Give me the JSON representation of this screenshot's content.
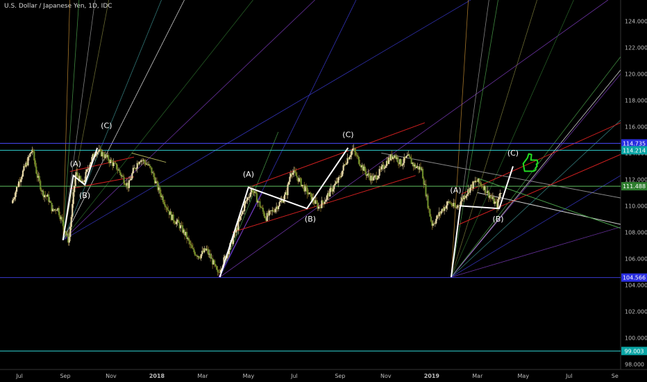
{
  "chart_data": {
    "type": "candlestick",
    "title": "U.S. Dollar / Japanese Yen, 1D, IDC",
    "y_axis": {
      "ticks": [
        98,
        100,
        102,
        104,
        106,
        108,
        110,
        112,
        114,
        116,
        118,
        120,
        122,
        124
      ],
      "tick_labels": [
        "98.000",
        "100.000",
        "102.000",
        "104.000",
        "106.000",
        "108.000",
        "110.000",
        "112.000",
        "114.000",
        "116.000",
        "118.000",
        "120.000",
        "122.000",
        "124.000"
      ],
      "range": [
        97.6,
        125.6
      ]
    },
    "x_axis": {
      "labels": [
        {
          "text": "Jul",
          "m": 0.3
        },
        {
          "text": "Sep",
          "m": 2.3
        },
        {
          "text": "Nov",
          "m": 4.3
        },
        {
          "text": "2018",
          "m": 6.3
        },
        {
          "text": "Mar",
          "m": 8.3
        },
        {
          "text": "May",
          "m": 10.3
        },
        {
          "text": "Jul",
          "m": 12.3
        },
        {
          "text": "Sep",
          "m": 14.3
        },
        {
          "text": "Nov",
          "m": 16.3
        },
        {
          "text": "2019",
          "m": 18.3
        },
        {
          "text": "Mar",
          "m": 20.3
        },
        {
          "text": "May",
          "m": 22.3
        },
        {
          "text": "Jul",
          "m": 24.3
        },
        {
          "text": "Se",
          "m": 26.3
        }
      ],
      "range": [
        -0.55,
        26.55
      ]
    },
    "price_badges": [
      {
        "value": 114.735,
        "label": "114.735",
        "color": "#2a2ee0",
        "line": "#4a4aff"
      },
      {
        "value": 114.214,
        "label": "114.214",
        "color": "#0aa5a5",
        "line": "#30d0d0"
      },
      {
        "value": 111.488,
        "label": "111.488",
        "color": "#2e7d2e",
        "line": "#5fbf5f"
      },
      {
        "value": 104.566,
        "label": "104.566",
        "color": "#2a2ee0",
        "line": "#3a3ad0"
      },
      {
        "value": 99.003,
        "label": "99.003",
        "color": "#0aa5a5",
        "line": "#30d0d0"
      }
    ],
    "price_path": [
      [
        0,
        110.2
      ],
      [
        0.35,
        112.0
      ],
      [
        0.7,
        113.4
      ],
      [
        0.9,
        114.3
      ],
      [
        1.1,
        112.4
      ],
      [
        1.35,
        111.0
      ],
      [
        1.6,
        110.6
      ],
      [
        1.8,
        109.6
      ],
      [
        2.0,
        109.9
      ],
      [
        2.2,
        108.8
      ],
      [
        2.5,
        107.3
      ],
      [
        2.8,
        112.5
      ],
      [
        3.1,
        111.6
      ],
      [
        3.4,
        113.2
      ],
      [
        3.7,
        114.2
      ],
      [
        4.0,
        113.9
      ],
      [
        4.3,
        113.4
      ],
      [
        4.6,
        112.9
      ],
      [
        4.9,
        112.0
      ],
      [
        5.1,
        111.5
      ],
      [
        5.3,
        112.6
      ],
      [
        5.6,
        113.6
      ],
      [
        5.9,
        113.2
      ],
      [
        6.1,
        112.7
      ],
      [
        6.4,
        111.3
      ],
      [
        6.7,
        110.2
      ],
      [
        7.0,
        109.1
      ],
      [
        7.3,
        108.6
      ],
      [
        7.6,
        107.8
      ],
      [
        7.9,
        106.6
      ],
      [
        8.2,
        106.2
      ],
      [
        8.5,
        106.7
      ],
      [
        8.8,
        105.7
      ],
      [
        9.0,
        104.8
      ],
      [
        9.3,
        106.0
      ],
      [
        9.6,
        107.2
      ],
      [
        9.9,
        108.6
      ],
      [
        10.2,
        110.2
      ],
      [
        10.5,
        111.3
      ],
      [
        10.8,
        110.2
      ],
      [
        11.1,
        109.1
      ],
      [
        11.4,
        109.6
      ],
      [
        11.7,
        110.2
      ],
      [
        12.0,
        110.9
      ],
      [
        12.2,
        112.7
      ],
      [
        12.5,
        112.1
      ],
      [
        12.8,
        111.3
      ],
      [
        13.1,
        110.6
      ],
      [
        13.4,
        109.9
      ],
      [
        13.7,
        110.5
      ],
      [
        14.0,
        111.3
      ],
      [
        14.3,
        112.0
      ],
      [
        14.6,
        113.4
      ],
      [
        14.9,
        114.3
      ],
      [
        15.2,
        113.3
      ],
      [
        15.5,
        112.4
      ],
      [
        15.8,
        112.0
      ],
      [
        16.1,
        112.6
      ],
      [
        16.4,
        113.4
      ],
      [
        16.7,
        113.9
      ],
      [
        17.0,
        113.2
      ],
      [
        17.3,
        113.7
      ],
      [
        17.6,
        113.0
      ],
      [
        17.9,
        112.8
      ],
      [
        18.05,
        111.4
      ],
      [
        18.2,
        109.9
      ],
      [
        18.35,
        108.6
      ],
      [
        18.5,
        108.9
      ],
      [
        18.8,
        109.7
      ],
      [
        19.1,
        110.3
      ],
      [
        19.4,
        109.8
      ],
      [
        19.7,
        110.6
      ],
      [
        20.0,
        111.3
      ],
      [
        20.3,
        111.9
      ],
      [
        20.6,
        111.5
      ],
      [
        20.9,
        110.7
      ],
      [
        21.2,
        110.0
      ],
      [
        21.35,
        111.1
      ]
    ],
    "wave_labels": [
      {
        "text": "(A)",
        "m": 2.75,
        "p": 113.0
      },
      {
        "text": "(B)",
        "m": 3.15,
        "p": 110.6
      },
      {
        "text": "(C)",
        "m": 4.1,
        "p": 115.9
      },
      {
        "text": "(A)",
        "m": 10.3,
        "p": 112.2
      },
      {
        "text": "(B)",
        "m": 13.0,
        "p": 108.8
      },
      {
        "text": "(C)",
        "m": 14.65,
        "p": 115.2
      },
      {
        "text": "(A)",
        "m": 19.35,
        "p": 111.0
      },
      {
        "text": "(B)",
        "m": 21.2,
        "p": 108.8
      },
      {
        "text": "(C)",
        "m": 21.85,
        "p": 113.8
      }
    ],
    "wave_lines": [
      [
        [
          2.2,
          107.4
        ],
        [
          2.65,
          112.3
        ],
        [
          3.15,
          111.6
        ],
        [
          3.7,
          114.4
        ]
      ],
      [
        [
          9.05,
          104.6
        ],
        [
          10.3,
          111.4
        ],
        [
          12.85,
          109.8
        ],
        [
          14.65,
          114.4
        ]
      ],
      [
        [
          19.15,
          104.6
        ],
        [
          19.55,
          110.0
        ],
        [
          21.25,
          109.8
        ],
        [
          21.85,
          113.0
        ]
      ]
    ],
    "channel_lines": [
      {
        "color": "#d22020",
        "w": 1,
        "pts": [
          [
            2.5,
            111.3
          ],
          [
            5.3,
            112.2
          ]
        ]
      },
      {
        "color": "#d22020",
        "w": 1,
        "pts": [
          [
            2.5,
            112.6
          ],
          [
            5.3,
            113.7
          ]
        ]
      },
      {
        "color": "#b0b05a",
        "w": 1,
        "pts": [
          [
            5.2,
            114.0
          ],
          [
            6.7,
            113.3
          ]
        ]
      },
      {
        "color": "#7a3aba",
        "w": 1,
        "pts": [
          [
            9.0,
            104.6
          ],
          [
            10.9,
            111.0
          ]
        ]
      },
      {
        "color": "#d22020",
        "w": 1,
        "pts": [
          [
            9.6,
            108.0
          ],
          [
            17.6,
            112.3
          ]
        ]
      },
      {
        "color": "#d22020",
        "w": 1,
        "pts": [
          [
            10.3,
            111.4
          ],
          [
            18.0,
            116.3
          ]
        ]
      },
      {
        "color": "#8a8a8a",
        "w": 1,
        "pts": [
          [
            16.1,
            114.0
          ],
          [
            26.55,
            110.6
          ]
        ]
      },
      {
        "color": "#d22020",
        "w": 1,
        "pts": [
          [
            19.5,
            108.6
          ],
          [
            26.55,
            113.9
          ]
        ]
      },
      {
        "color": "#d22020",
        "w": 1,
        "pts": [
          [
            19.6,
            110.9
          ],
          [
            26.55,
            116.3
          ]
        ]
      },
      {
        "color": "#d0d0d0",
        "w": 1,
        "pts": [
          [
            20.3,
            111.0
          ],
          [
            26.55,
            108.6
          ]
        ]
      },
      {
        "color": "#4aa04a",
        "w": 1,
        "pts": [
          [
            20.3,
            112.1
          ],
          [
            26.55,
            108.3
          ]
        ]
      }
    ],
    "fan_origins": [
      {
        "m": 2.2,
        "p": 107.4
      },
      {
        "m": 9.05,
        "p": 104.6
      },
      {
        "m": 19.15,
        "p": 104.6
      }
    ],
    "fan_rays": [
      {
        "o": 0,
        "color": "#f0f0f0",
        "end": [
          7.5,
          125.6
        ]
      },
      {
        "o": 0,
        "color": "#9a9a9a",
        "end": [
          3.6,
          125.6
        ]
      },
      {
        "o": 0,
        "color": "#4aa04a",
        "end": [
          2.9,
          125.6
        ]
      },
      {
        "o": 0,
        "color": "#c08a30",
        "end": [
          2.5,
          125.6
        ]
      },
      {
        "o": 0,
        "color": "#7a7a3a",
        "end": [
          4.2,
          125.6
        ]
      },
      {
        "o": 0,
        "color": "#7a3aba",
        "end": [
          13.2,
          125.6
        ]
      },
      {
        "o": 0,
        "color": "#3a3ad0",
        "end": [
          20.0,
          125.6
        ]
      },
      {
        "o": 0,
        "color": "#2a6a2a",
        "end": [
          10.5,
          125.6
        ]
      },
      {
        "o": 0,
        "color": "#3a8a8a",
        "end": [
          6.5,
          125.6
        ]
      },
      {
        "o": 1,
        "color": "#3a3ad0",
        "end": [
          15.0,
          125.6
        ]
      },
      {
        "o": 1,
        "color": "#7a3aba",
        "end": [
          26.0,
          125.6
        ]
      },
      {
        "o": 1,
        "color": "#4aa04a",
        "end": [
          11.6,
          115.6
        ]
      },
      {
        "o": 2,
        "color": "#f0f0f0",
        "end": [
          26.55,
          120.3
        ]
      },
      {
        "o": 2,
        "color": "#4aa04a",
        "end": [
          26.55,
          121.3
        ]
      },
      {
        "o": 2,
        "color": "#7a3aba",
        "end": [
          26.55,
          120.0
        ]
      },
      {
        "o": 2,
        "color": "#3a8a8a",
        "end": [
          26.55,
          116.5
        ]
      },
      {
        "o": 2,
        "color": "#3a3ad0",
        "end": [
          26.55,
          112.3
        ]
      },
      {
        "o": 2,
        "color": "#7a3aba",
        "end": [
          26.55,
          108.4
        ]
      },
      {
        "o": 2,
        "color": "#4aa04a",
        "end": [
          21.2,
          125.6
        ]
      },
      {
        "o": 2,
        "color": "#c08a30",
        "end": [
          19.9,
          125.6
        ]
      },
      {
        "o": 2,
        "color": "#9a9a9a",
        "end": [
          20.8,
          125.6
        ]
      },
      {
        "o": 2,
        "color": "#7a7a3a",
        "end": [
          22.9,
          125.6
        ]
      },
      {
        "o": 2,
        "color": "#2a6a2a",
        "end": [
          24.5,
          125.6
        ]
      }
    ],
    "thumbs_up": {
      "m": 22.6,
      "p": 113.1,
      "color": "#22dd22"
    },
    "grid": false
  }
}
